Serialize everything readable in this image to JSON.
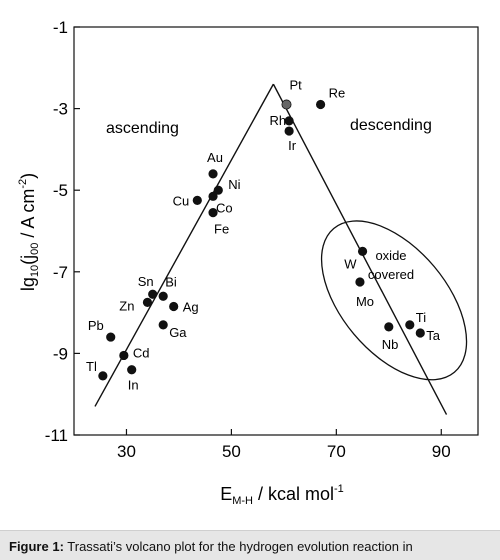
{
  "chart_data": {
    "type": "scatter",
    "title": "",
    "xlabel": {
      "main": "E",
      "sub": "M-H",
      "rest": " / kcal mol",
      "sup": "-1"
    },
    "ylabel": {
      "main": "lg",
      "sub": "10",
      "mid": "(j",
      "sub2": "00",
      "rest": " / A cm",
      "sup": "-2",
      "close": ")"
    },
    "xlim": [
      20,
      97
    ],
    "ylim": [
      -11,
      -1
    ],
    "xticks": [
      30,
      50,
      70,
      90
    ],
    "yticks": [
      -1,
      -3,
      -5,
      -7,
      -9,
      -11
    ],
    "grid": false,
    "region_labels": {
      "ascending": "ascending",
      "descending": "descending"
    },
    "oxide_label": [
      "oxide",
      "covered"
    ],
    "points": [
      {
        "label": "Pt",
        "x": 60.5,
        "y": -2.9,
        "highlight": true
      },
      {
        "label": "Re",
        "x": 67,
        "y": -2.9
      },
      {
        "label": "Rh",
        "x": 61,
        "y": -3.3
      },
      {
        "label": "Ir",
        "x": 61,
        "y": -3.55
      },
      {
        "label": "Au",
        "x": 46.5,
        "y": -4.6
      },
      {
        "label": "Ni",
        "x": 47.5,
        "y": -5.0
      },
      {
        "label": "Co",
        "x": 46.5,
        "y": -5.15
      },
      {
        "label": "Cu",
        "x": 43.5,
        "y": -5.25
      },
      {
        "label": "Fe",
        "x": 46.5,
        "y": -5.55
      },
      {
        "label": "W",
        "x": 75,
        "y": -6.5
      },
      {
        "label": "Mo",
        "x": 74.5,
        "y": -7.25
      },
      {
        "label": "Ti",
        "x": 84,
        "y": -8.3
      },
      {
        "label": "Nb",
        "x": 80,
        "y": -8.35
      },
      {
        "label": "Ta",
        "x": 86,
        "y": -8.5
      },
      {
        "label": "Sn",
        "x": 35,
        "y": -7.55
      },
      {
        "label": "Bi",
        "x": 37,
        "y": -7.6
      },
      {
        "label": "Zn",
        "x": 34,
        "y": -7.75
      },
      {
        "label": "Ag",
        "x": 39,
        "y": -7.85
      },
      {
        "label": "Ga",
        "x": 37,
        "y": -8.3
      },
      {
        "label": "Pb",
        "x": 27,
        "y": -8.6
      },
      {
        "label": "Cd",
        "x": 29.5,
        "y": -9.05
      },
      {
        "label": "In",
        "x": 31,
        "y": -9.4
      },
      {
        "label": "Tl",
        "x": 25.5,
        "y": -9.55
      }
    ],
    "lines": [
      {
        "name": "ascending-line",
        "from": [
          24,
          -10.3
        ],
        "to": [
          58,
          -2.4
        ]
      },
      {
        "name": "descending-line",
        "from": [
          58,
          -2.4
        ],
        "to": [
          91,
          -10.5
        ]
      }
    ],
    "ellipse": {
      "cx": 81,
      "cy": -7.7,
      "rx": 10,
      "ry": 2.3,
      "angle": -40
    }
  },
  "caption": {
    "label": "Figure 1:",
    "text": " Trassati’s volcano plot for the hydrogen evolution reaction in"
  }
}
